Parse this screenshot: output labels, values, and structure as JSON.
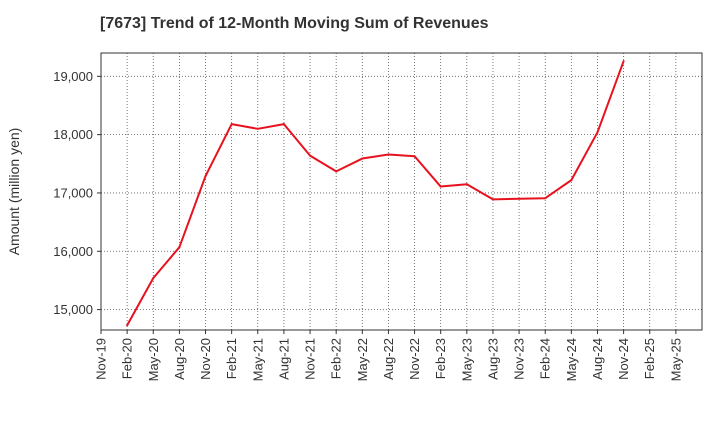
{
  "chart_data": {
    "type": "line",
    "title": "[7673]  Trend of 12-Month Moving Sum of Revenues",
    "xlabel": "",
    "ylabel": "Amount (million yen)",
    "ylim": [
      14650,
      19400
    ],
    "yticks": [
      15000,
      16000,
      17000,
      18000,
      19000
    ],
    "ytick_labels": [
      "15,000",
      "16,000",
      "17,000",
      "18,000",
      "19,000"
    ],
    "xticks": [
      "Nov-19",
      "Feb-20",
      "May-20",
      "Aug-20",
      "Nov-20",
      "Feb-21",
      "May-21",
      "Aug-21",
      "Nov-21",
      "Feb-22",
      "May-22",
      "Aug-22",
      "Nov-22",
      "Feb-23",
      "May-23",
      "Aug-23",
      "Nov-23",
      "Feb-24",
      "May-24",
      "Aug-24",
      "Nov-24",
      "Feb-25",
      "May-25"
    ],
    "grid": true,
    "series": [
      {
        "color": "#e8121f",
        "x": [
          "Feb-20",
          "May-20",
          "Aug-20",
          "Nov-20",
          "Feb-21",
          "May-21",
          "Aug-21",
          "Nov-21",
          "Feb-22",
          "May-22",
          "Aug-22",
          "Nov-22",
          "Feb-23",
          "May-23",
          "Aug-23",
          "Nov-23",
          "Feb-24",
          "May-24",
          "Aug-24",
          "Nov-24"
        ],
        "values": [
          14730,
          15540,
          16070,
          17290,
          18180,
          18100,
          18180,
          17640,
          17370,
          17590,
          17660,
          17630,
          17110,
          17150,
          16890,
          16900,
          16910,
          17220,
          18040,
          19260
        ]
      }
    ]
  }
}
